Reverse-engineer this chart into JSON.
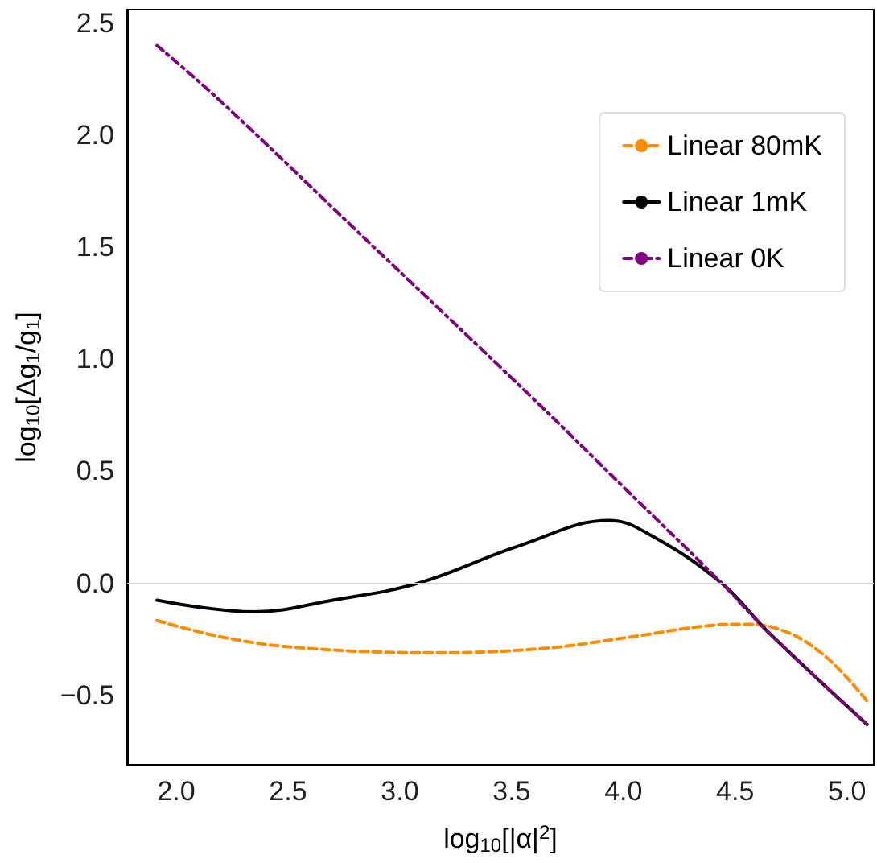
{
  "chart_data": {
    "type": "line",
    "xlabel": "log$_{10}$[|α|$^{2}$]",
    "ylabel": "log$_{10}$[Δg$_{1}$/g$_{1}$]",
    "xlim": [
      1.78,
      5.12
    ],
    "xticks": [
      {
        "value": 2,
        "label": "2.0"
      },
      2.5,
      {
        "value": 3,
        "label": "3.0"
      },
      3.5,
      {
        "value": 4,
        "label": "4.0"
      },
      4.5,
      {
        "value": 5,
        "label": "5.0"
      }
    ],
    "ylim": [
      -0.81,
      2.56
    ],
    "yticks": [
      {
        "value": -0.5,
        "label": "−0.5"
      },
      {
        "value": 0,
        "label": "0.0"
      },
      0.5,
      {
        "value": 1,
        "label": "1.0"
      },
      1.5,
      {
        "value": 2,
        "label": "2.0"
      },
      2.5
    ],
    "grid": false,
    "legend": "top right",
    "marker": "none",
    "ref_lines": [
      {
        "axis": "y",
        "value": 0,
        "color": "#d3d3d3",
        "line_style": "solid"
      }
    ],
    "series": [
      {
        "name": "Linear 80mK",
        "color": "#ff8c00",
        "line_style": "dashed",
        "x": [
          1.914,
          2.22,
          2.58,
          3.17,
          3.65,
          4.01,
          4.37,
          4.53,
          4.68,
          4.89,
          5.09
        ],
        "values": [
          -0.166,
          -0.243,
          -0.29,
          -0.31,
          -0.29,
          -0.243,
          -0.19,
          -0.183,
          -0.2,
          -0.315,
          -0.526
        ]
      },
      {
        "name": "Linear 1mK",
        "color": "#000000",
        "line_style": "solid",
        "x": [
          1.914,
          2.35,
          2.7,
          3.08,
          3.53,
          3.94,
          4.13,
          4.44,
          4.65,
          5.09
        ],
        "values": [
          -0.075,
          -0.127,
          -0.075,
          0,
          0.166,
          0.28,
          0.21,
          0,
          -0.22,
          -0.63
        ]
      },
      {
        "name": "Linear 0K",
        "color": "#800080",
        "line_style": "dashdot",
        "x": [
          1.914,
          2.2,
          2.8,
          3.58,
          4.0,
          4.44,
          4.65,
          5.09
        ],
        "values": [
          2.4,
          2.15,
          1.58,
          0.84,
          0.43,
          0,
          -0.22,
          -0.63
        ]
      }
    ]
  }
}
